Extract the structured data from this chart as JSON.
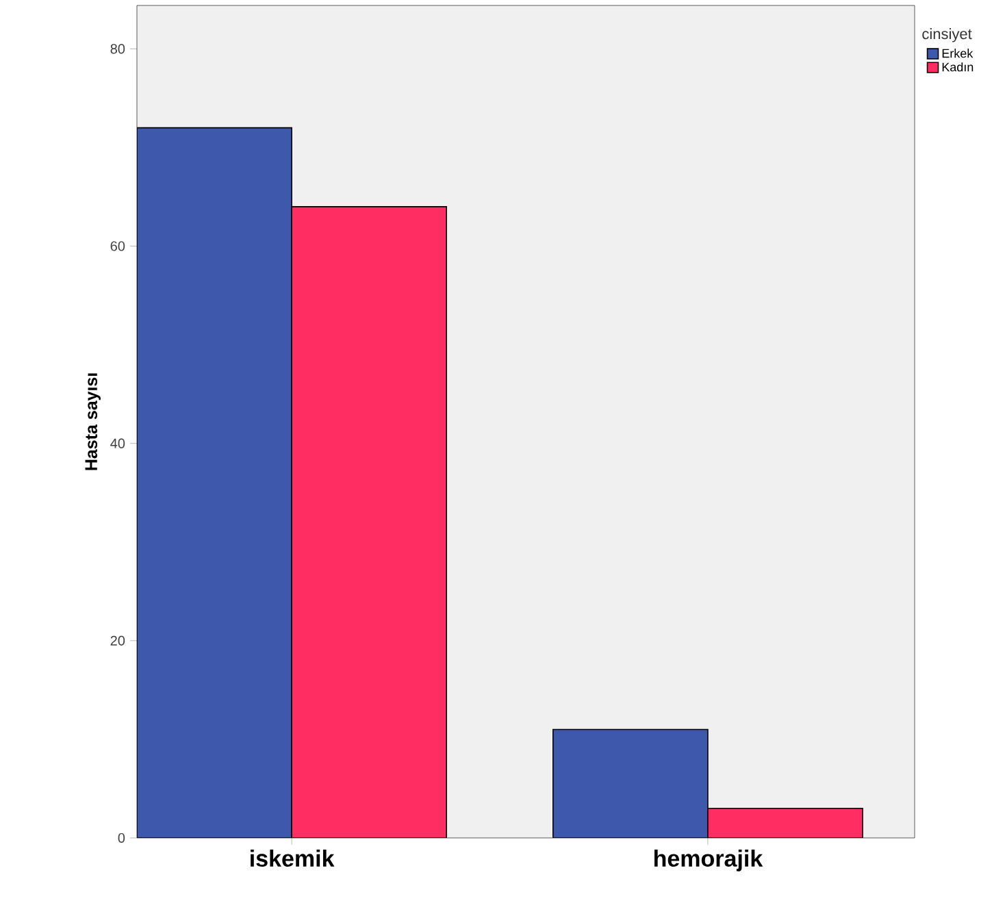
{
  "chart_data": {
    "type": "bar",
    "ylabel": "Hasta sayısı",
    "legend_title": "cinsiyet",
    "legend": "top right",
    "categories": [
      "iskemik",
      "hemorajik"
    ],
    "series": [
      {
        "name": "Erkek",
        "color": "#3e58ac",
        "values": [
          72,
          11
        ]
      },
      {
        "name": "Kadın",
        "color": "#ff2d62",
        "values": [
          64,
          3
        ]
      }
    ],
    "ylim": [
      0,
      84.4
    ],
    "yticks": [
      0,
      20,
      40,
      60,
      80
    ],
    "grid": false
  }
}
